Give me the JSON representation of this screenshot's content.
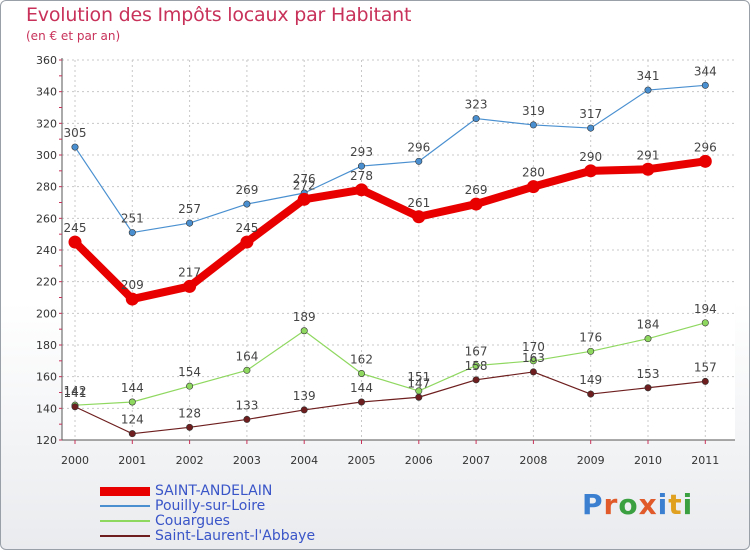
{
  "header": {
    "title": "Evolution des Impôts locaux par Habitant",
    "subtitle": "(en € et par an)"
  },
  "logo": {
    "text": "Proxiti",
    "letter_colors": [
      "#3a7fd0",
      "#e05a2a",
      "#3aa040",
      "#e05a2a",
      "#3a7fd0",
      "#e0a020",
      "#3aa040"
    ]
  },
  "chart_data": {
    "type": "line",
    "title": "Evolution des Impôts locaux par Habitant",
    "subtitle": "(en € et par an)",
    "xlabel": "",
    "ylabel": "",
    "categories": [
      "2000",
      "2001",
      "2002",
      "2003",
      "2004",
      "2005",
      "2006",
      "2007",
      "2008",
      "2009",
      "2010",
      "2011"
    ],
    "ylim": [
      120,
      360
    ],
    "yticks": [
      120,
      140,
      160,
      180,
      200,
      220,
      240,
      260,
      280,
      300,
      320,
      340,
      360
    ],
    "grid": true,
    "legend_position": "bottom-left",
    "series": [
      {
        "name": "SAINT-ANDELAIN",
        "color": "#e80000",
        "values": [
          245,
          209,
          217,
          245,
          272,
          278,
          261,
          269,
          280,
          290,
          291,
          296
        ],
        "labels": [
          "245",
          "209",
          "217",
          "245",
          "272",
          "278",
          "261",
          "269",
          "280",
          "290",
          "291",
          "296"
        ]
      },
      {
        "name": "Pouilly-sur-Loire",
        "color": "#4a90d0",
        "values": [
          305,
          251,
          257,
          269,
          276,
          293,
          296,
          323,
          319,
          317,
          341,
          344
        ],
        "labels": [
          "305",
          "251",
          "257",
          "269",
          "276",
          "293",
          "296",
          "323",
          "319",
          "317",
          "341",
          "344"
        ]
      },
      {
        "name": "Couargues",
        "color": "#8fd860",
        "values": [
          142,
          144,
          154,
          164,
          189,
          162,
          151,
          167,
          170,
          176,
          184,
          194
        ],
        "labels": [
          "142",
          "144",
          "154",
          "164",
          "189",
          "162",
          "151",
          "167",
          "170",
          "176",
          "184",
          "194"
        ]
      },
      {
        "name": "Saint-Laurent-l'Abbaye",
        "color": "#6e1e1e",
        "values": [
          141,
          124,
          128,
          133,
          139,
          144,
          147,
          158,
          163,
          149,
          153,
          157
        ],
        "labels": [
          "141",
          "124",
          "128",
          "133",
          "139",
          "144",
          "147",
          "158",
          "163",
          "149",
          "153",
          "157"
        ]
      }
    ]
  }
}
